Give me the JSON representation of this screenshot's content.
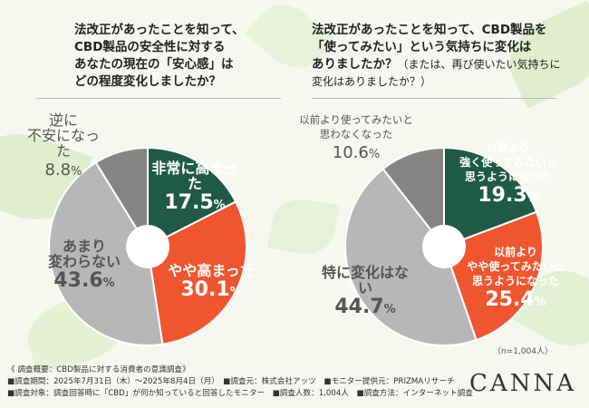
{
  "chart_data": [
    {
      "type": "pie",
      "title": "法改正があったことを知って、CBD製品の安全性に対するあなたの現在の「安心感」はどの程度変化しましたか？",
      "title_lines": [
        "法改正があったことを知って、",
        "CBD製品の安全性に対する",
        "あなたの現在の「安心感」は",
        "どの程度変化しましたか？"
      ],
      "slices": [
        {
          "label": "非常に高まった",
          "lines": [
            "非常に高まった"
          ],
          "value": 17.5,
          "color": "#1f5a47"
        },
        {
          "label": "やや高まった",
          "lines": [
            "やや高まった"
          ],
          "value": 30.1,
          "color": "#ef5630"
        },
        {
          "label": "あまり変わらない",
          "lines": [
            "あまり",
            "変わらない"
          ],
          "value": 43.6,
          "color": "#b7b7b7"
        },
        {
          "label": "逆に不安になった",
          "lines": [
            "逆に",
            "不安になった"
          ],
          "value": 8.8,
          "color": "#858585"
        }
      ]
    },
    {
      "type": "pie",
      "title": "法改正があったことを知って、CBD製品を「使ってみたい」という気持ちに変化はありましたか？（または、再び使いたい気持ちに変化はありましたか？）",
      "title_lines": [
        "法改正があったことを知って、CBD製品を",
        "「使ってみたい」という気持ちに変化は",
        "ありましたか？"
      ],
      "title_tail": "（または、再び使いたい気持ちに",
      "title_tail2": "変化はありましたか？）",
      "slices": [
        {
          "label": "以前より強く使ってみたいと思うようになった",
          "lines": [
            "以前より",
            "強く使ってみたいと",
            "思うようになった"
          ],
          "value": 19.3,
          "color": "#1f5a47"
        },
        {
          "label": "以前よりやや使ってみたいと思うようになった",
          "lines": [
            "以前より",
            "やや使ってみたいと",
            "思うようになった"
          ],
          "value": 25.4,
          "color": "#ef5630"
        },
        {
          "label": "特に変化はない",
          "lines": [
            "特に変化はない"
          ],
          "value": 44.7,
          "color": "#b7b7b7"
        },
        {
          "label": "以前より使ってみたいと思わなくなった",
          "lines": [
            "以前より使ってみたいと",
            "思わなくなった"
          ],
          "value": 10.6,
          "color": "#858585"
        }
      ]
    }
  ],
  "pct_unit": "%",
  "sample_note": "（n=1,004人）",
  "footer": {
    "line1": "《 調査概要：CBD製品に対する消費者の意識調査》",
    "line2": "■調査期間：2025年7月31日（木）～2025年8月4日（月）　■調査元：株式会社アッツ　■モニター提供元：PRIZMAリサーチ",
    "line3": "■調査対象：調査回答時に「CBD」が何か知っていると回答したモニター　■調査人数：1,004人　■調査方法：インターネット調査"
  },
  "brand": "CANNA"
}
